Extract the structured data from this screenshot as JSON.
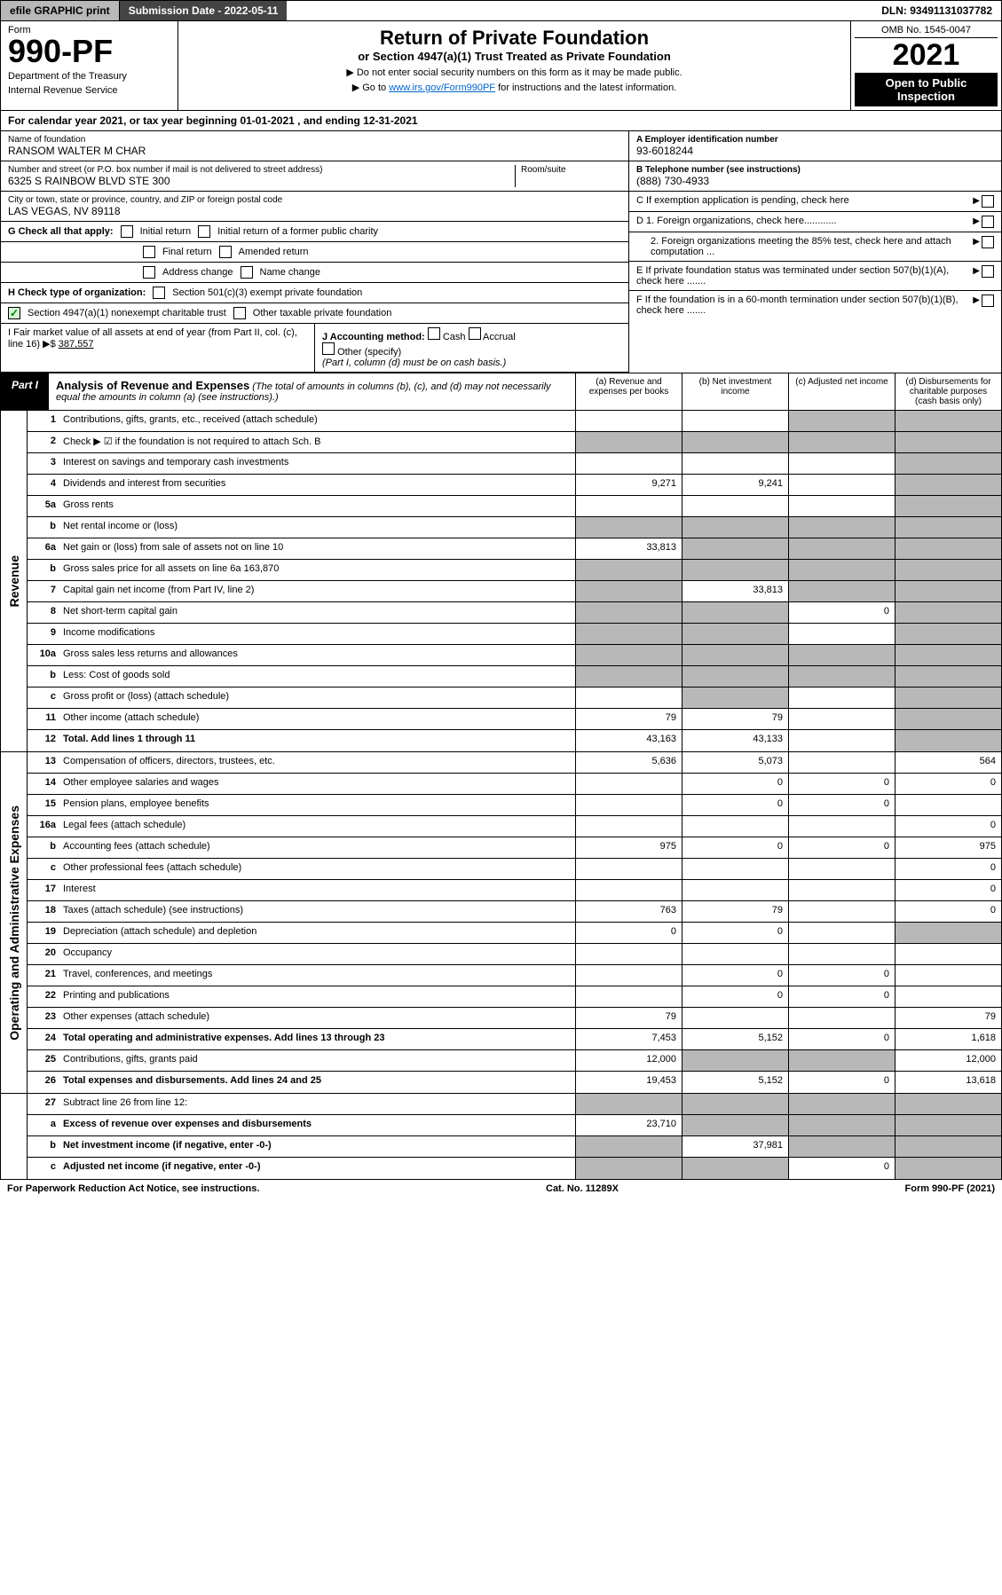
{
  "topbar": {
    "efile": "efile GRAPHIC print",
    "submission_label": "Submission Date - 2022-05-11",
    "dln": "DLN: 93491131037782"
  },
  "header": {
    "form_word": "Form",
    "form_number": "990-PF",
    "dept": "Department of the Treasury",
    "irs": "Internal Revenue Service",
    "title": "Return of Private Foundation",
    "subtitle": "or Section 4947(a)(1) Trust Treated as Private Foundation",
    "note1": "▶ Do not enter social security numbers on this form as it may be made public.",
    "note2_pre": "▶ Go to ",
    "note2_link": "www.irs.gov/Form990PF",
    "note2_post": " for instructions and the latest information.",
    "omb": "OMB No. 1545-0047",
    "year": "2021",
    "open": "Open to Public Inspection"
  },
  "cal_year": "For calendar year 2021, or tax year beginning 01-01-2021                       , and ending 12-31-2021",
  "info": {
    "name_lbl": "Name of foundation",
    "name_val": "RANSOM WALTER M CHAR",
    "addr_lbl": "Number and street (or P.O. box number if mail is not delivered to street address)",
    "addr_val": "6325 S RAINBOW BLVD STE 300",
    "room_lbl": "Room/suite",
    "city_lbl": "City or town, state or province, country, and ZIP or foreign postal code",
    "city_val": "LAS VEGAS, NV  89118",
    "a_lbl": "A Employer identification number",
    "a_val": "93-6018244",
    "b_lbl": "B Telephone number (see instructions)",
    "b_val": "(888) 730-4933",
    "c_lbl": "C If exemption application is pending, check here",
    "d1_lbl": "D 1. Foreign organizations, check here............",
    "d2_lbl": "2. Foreign organizations meeting the 85% test, check here and attach computation ...",
    "e_lbl": "E If private foundation status was terminated under section 507(b)(1)(A), check here .......",
    "f_lbl": "F If the foundation is in a 60-month termination under section 507(b)(1)(B), check here .......",
    "g_lbl": "G Check all that apply:",
    "g_initial": "Initial return",
    "g_initial_former": "Initial return of a former public charity",
    "g_final": "Final return",
    "g_amended": "Amended return",
    "g_addr": "Address change",
    "g_name": "Name change",
    "h_lbl": "H Check type of organization:",
    "h_501": "Section 501(c)(3) exempt private foundation",
    "h_4947": "Section 4947(a)(1) nonexempt charitable trust",
    "h_other": "Other taxable private foundation",
    "i_lbl": "I Fair market value of all assets at end of year (from Part II, col. (c),",
    "i_line": "line 16) ▶$ ",
    "i_val": "387,557",
    "j_lbl": "J Accounting method:",
    "j_cash": "Cash",
    "j_accrual": "Accrual",
    "j_other": "Other (specify)",
    "j_note": "(Part I, column (d) must be on cash basis.)"
  },
  "part1": {
    "tag": "Part I",
    "title": "Analysis of Revenue and Expenses",
    "title_note": "(The total of amounts in columns (b), (c), and (d) may not necessarily equal the amounts in column (a) (see instructions).)",
    "col_a": "(a) Revenue and expenses per books",
    "col_b": "(b) Net investment income",
    "col_c": "(c) Adjusted net income",
    "col_d": "(d) Disbursements for charitable purposes (cash basis only)"
  },
  "side_revenue": "Revenue",
  "side_expenses": "Operating and Administrative Expenses",
  "rows": [
    {
      "n": "1",
      "l": "Contributions, gifts, grants, etc., received (attach schedule)",
      "a": "",
      "b": "",
      "c": "grey",
      "d": "grey"
    },
    {
      "n": "2",
      "l": "Check ▶ ☑ if the foundation is not required to attach Sch. B",
      "a": "grey",
      "b": "grey",
      "c": "grey",
      "d": "grey",
      "bold": false
    },
    {
      "n": "3",
      "l": "Interest on savings and temporary cash investments",
      "a": "",
      "b": "",
      "c": "",
      "d": "grey"
    },
    {
      "n": "4",
      "l": "Dividends and interest from securities",
      "a": "9,271",
      "b": "9,241",
      "c": "",
      "d": "grey"
    },
    {
      "n": "5a",
      "l": "Gross rents",
      "a": "",
      "b": "",
      "c": "",
      "d": "grey"
    },
    {
      "n": "b",
      "l": "Net rental income or (loss)",
      "a": "grey",
      "b": "grey",
      "c": "grey",
      "d": "grey"
    },
    {
      "n": "6a",
      "l": "Net gain or (loss) from sale of assets not on line 10",
      "a": "33,813",
      "b": "grey",
      "c": "grey",
      "d": "grey"
    },
    {
      "n": "b",
      "l": "Gross sales price for all assets on line 6a        163,870",
      "a": "grey",
      "b": "grey",
      "c": "grey",
      "d": "grey"
    },
    {
      "n": "7",
      "l": "Capital gain net income (from Part IV, line 2)",
      "a": "grey",
      "b": "33,813",
      "c": "grey",
      "d": "grey"
    },
    {
      "n": "8",
      "l": "Net short-term capital gain",
      "a": "grey",
      "b": "grey",
      "c": "0",
      "d": "grey"
    },
    {
      "n": "9",
      "l": "Income modifications",
      "a": "grey",
      "b": "grey",
      "c": "",
      "d": "grey"
    },
    {
      "n": "10a",
      "l": "Gross sales less returns and allowances",
      "a": "grey",
      "b": "grey",
      "c": "grey",
      "d": "grey"
    },
    {
      "n": "b",
      "l": "Less: Cost of goods sold",
      "a": "grey",
      "b": "grey",
      "c": "grey",
      "d": "grey"
    },
    {
      "n": "c",
      "l": "Gross profit or (loss) (attach schedule)",
      "a": "",
      "b": "grey",
      "c": "",
      "d": "grey"
    },
    {
      "n": "11",
      "l": "Other income (attach schedule)",
      "a": "79",
      "b": "79",
      "c": "",
      "d": "grey"
    },
    {
      "n": "12",
      "l": "Total. Add lines 1 through 11",
      "a": "43,163",
      "b": "43,133",
      "c": "",
      "d": "grey",
      "bold": true
    }
  ],
  "exp_rows": [
    {
      "n": "13",
      "l": "Compensation of officers, directors, trustees, etc.",
      "a": "5,636",
      "b": "5,073",
      "c": "",
      "d": "564"
    },
    {
      "n": "14",
      "l": "Other employee salaries and wages",
      "a": "",
      "b": "0",
      "c": "0",
      "d": "0"
    },
    {
      "n": "15",
      "l": "Pension plans, employee benefits",
      "a": "",
      "b": "0",
      "c": "0",
      "d": ""
    },
    {
      "n": "16a",
      "l": "Legal fees (attach schedule)",
      "a": "",
      "b": "",
      "c": "",
      "d": "0"
    },
    {
      "n": "b",
      "l": "Accounting fees (attach schedule)",
      "a": "975",
      "b": "0",
      "c": "0",
      "d": "975"
    },
    {
      "n": "c",
      "l": "Other professional fees (attach schedule)",
      "a": "",
      "b": "",
      "c": "",
      "d": "0"
    },
    {
      "n": "17",
      "l": "Interest",
      "a": "",
      "b": "",
      "c": "",
      "d": "0"
    },
    {
      "n": "18",
      "l": "Taxes (attach schedule) (see instructions)",
      "a": "763",
      "b": "79",
      "c": "",
      "d": "0"
    },
    {
      "n": "19",
      "l": "Depreciation (attach schedule) and depletion",
      "a": "0",
      "b": "0",
      "c": "",
      "d": "grey"
    },
    {
      "n": "20",
      "l": "Occupancy",
      "a": "",
      "b": "",
      "c": "",
      "d": ""
    },
    {
      "n": "21",
      "l": "Travel, conferences, and meetings",
      "a": "",
      "b": "0",
      "c": "0",
      "d": ""
    },
    {
      "n": "22",
      "l": "Printing and publications",
      "a": "",
      "b": "0",
      "c": "0",
      "d": ""
    },
    {
      "n": "23",
      "l": "Other expenses (attach schedule)",
      "a": "79",
      "b": "",
      "c": "",
      "d": "79"
    },
    {
      "n": "24",
      "l": "Total operating and administrative expenses. Add lines 13 through 23",
      "a": "7,453",
      "b": "5,152",
      "c": "0",
      "d": "1,618",
      "bold": true
    },
    {
      "n": "25",
      "l": "Contributions, gifts, grants paid",
      "a": "12,000",
      "b": "grey",
      "c": "grey",
      "d": "12,000"
    },
    {
      "n": "26",
      "l": "Total expenses and disbursements. Add lines 24 and 25",
      "a": "19,453",
      "b": "5,152",
      "c": "0",
      "d": "13,618",
      "bold": true
    }
  ],
  "bottom_rows": [
    {
      "n": "27",
      "l": "Subtract line 26 from line 12:",
      "a": "grey",
      "b": "grey",
      "c": "grey",
      "d": "grey"
    },
    {
      "n": "a",
      "l": "Excess of revenue over expenses and disbursements",
      "a": "23,710",
      "b": "grey",
      "c": "grey",
      "d": "grey",
      "bold": true
    },
    {
      "n": "b",
      "l": "Net investment income (if negative, enter -0-)",
      "a": "grey",
      "b": "37,981",
      "c": "grey",
      "d": "grey",
      "bold": true
    },
    {
      "n": "c",
      "l": "Adjusted net income (if negative, enter -0-)",
      "a": "grey",
      "b": "grey",
      "c": "0",
      "d": "grey",
      "bold": true
    }
  ],
  "footer": {
    "left": "For Paperwork Reduction Act Notice, see instructions.",
    "mid": "Cat. No. 11289X",
    "right": "Form 990-PF (2021)"
  },
  "colors": {
    "link": "#0066cc",
    "grey": "#b8b8b8",
    "black": "#000000",
    "green": "#008000"
  }
}
